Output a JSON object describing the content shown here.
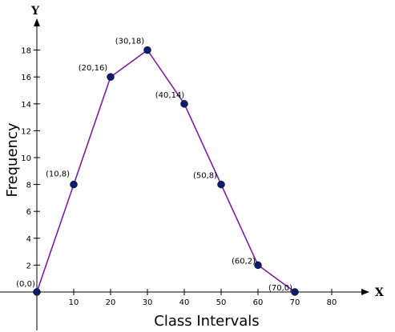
{
  "chart_data": {
    "type": "line",
    "xlabel": "Class Intervals",
    "ylabel": "Frequency",
    "x_axis_letter": "X",
    "y_axis_letter": "Y",
    "xlim": [
      0,
      80
    ],
    "ylim": [
      0,
      18
    ],
    "x_ticks": [
      10,
      20,
      30,
      40,
      50,
      60,
      70,
      80
    ],
    "y_ticks": [
      2,
      4,
      6,
      8,
      10,
      12,
      14,
      16,
      18
    ],
    "grid": false,
    "line_color": "#7b1fa2",
    "marker_color": "#0d1b6e",
    "points": [
      {
        "x": 0,
        "y": 0,
        "label": "(0,0)"
      },
      {
        "x": 10,
        "y": 8,
        "label": "(10,8)"
      },
      {
        "x": 20,
        "y": 16,
        "label": "(20,16)"
      },
      {
        "x": 30,
        "y": 18,
        "label": "(30,18)"
      },
      {
        "x": 40,
        "y": 14,
        "label": "(40,14)"
      },
      {
        "x": 50,
        "y": 8,
        "label": "(50,8)"
      },
      {
        "x": 60,
        "y": 2,
        "label": "(60,2)"
      },
      {
        "x": 70,
        "y": 0,
        "label": "(70,0)"
      }
    ]
  }
}
